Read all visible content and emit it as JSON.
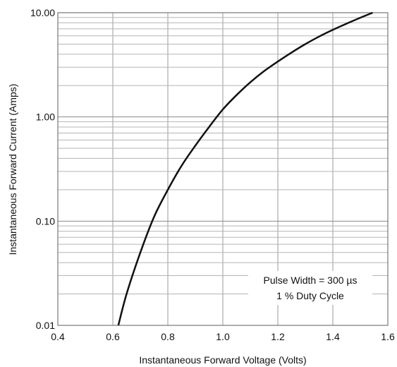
{
  "chart_data": {
    "type": "line",
    "title": "",
    "xlabel": "Instantaneous Forward Voltage (Volts)",
    "ylabel": "Instantaneous Forward Current (Amps)",
    "xlim": [
      0.4,
      1.6
    ],
    "ylim": [
      0.01,
      10
    ],
    "y_scale": "log",
    "grid": true,
    "x_ticks": [
      "0.4",
      "0.6",
      "0.8",
      "1.0",
      "1.2",
      "1.4",
      "1.6"
    ],
    "y_ticks": [
      "0.01",
      "0.10",
      "1.00",
      "10.00"
    ],
    "annotation_lines": [
      "Pulse Width = 300 µs",
      "1 % Duty Cycle"
    ],
    "series": [
      {
        "x": [
          0.62,
          0.65,
          0.7,
          0.75,
          0.8,
          0.85,
          0.9,
          0.95,
          1.0,
          1.05,
          1.1,
          1.15,
          1.2,
          1.25,
          1.3,
          1.35,
          1.4,
          1.45,
          1.5,
          1.545
        ],
        "y": [
          0.01,
          0.02,
          0.05,
          0.11,
          0.2,
          0.34,
          0.53,
          0.8,
          1.18,
          1.62,
          2.15,
          2.75,
          3.4,
          4.15,
          5.0,
          5.9,
          6.85,
          7.85,
          8.95,
          10.0
        ],
        "color": "#111111"
      }
    ]
  }
}
